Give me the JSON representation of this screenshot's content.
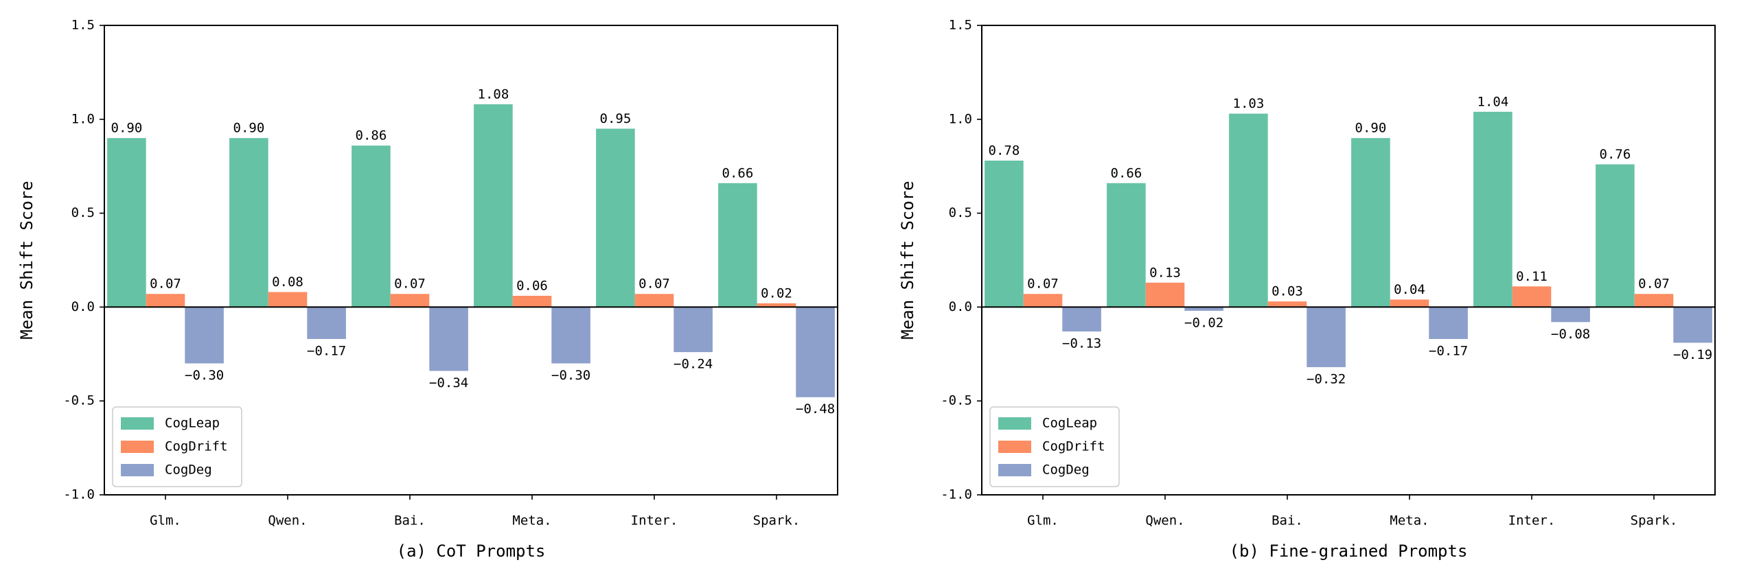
{
  "chart_data": [
    {
      "type": "bar",
      "xlabel": "(a) CoT Prompts",
      "ylabel": "Mean Shift Score",
      "categories": [
        "Glm.",
        "Qwen.",
        "Bai.",
        "Meta.",
        "Inter.",
        "Spark."
      ],
      "series": [
        {
          "name": "CogLeap",
          "color": "#66c2a5",
          "values": [
            0.9,
            0.9,
            0.86,
            1.08,
            0.95,
            0.66
          ],
          "value_labels": [
            "0.90",
            "0.90",
            "0.86",
            "1.08",
            "0.95",
            "0.66"
          ]
        },
        {
          "name": "CogDrift",
          "color": "#fc8d62",
          "values": [
            0.07,
            0.08,
            0.07,
            0.06,
            0.07,
            0.02
          ],
          "value_labels": [
            "0.07",
            "0.08",
            "0.07",
            "0.06",
            "0.07",
            "0.02"
          ]
        },
        {
          "name": "CogDeg",
          "color": "#8da0cb",
          "values": [
            -0.3,
            -0.17,
            -0.34,
            -0.3,
            -0.24,
            -0.48
          ],
          "value_labels": [
            "−0.30",
            "−0.17",
            "−0.34",
            "−0.30",
            "−0.24",
            "−0.48"
          ]
        }
      ],
      "ylim": [
        -1.0,
        1.5
      ],
      "yticks": [
        {
          "value": -1.0,
          "label": "-1.0"
        },
        -0.5,
        {
          "value": 0.0,
          "label": "0.0"
        },
        0.5,
        {
          "value": 1.0,
          "label": "1.0"
        },
        1.5
      ],
      "legend": "lower left",
      "grid": false
    },
    {
      "type": "bar",
      "xlabel": "(b) Fine-grained Prompts",
      "ylabel": "Mean Shift Score",
      "categories": [
        "Glm.",
        "Qwen.",
        "Bai.",
        "Meta.",
        "Inter.",
        "Spark."
      ],
      "series": [
        {
          "name": "CogLeap",
          "color": "#66c2a5",
          "values": [
            0.78,
            0.66,
            1.03,
            0.9,
            1.04,
            0.76
          ],
          "value_labels": [
            "0.78",
            "0.66",
            "1.03",
            "0.90",
            "1.04",
            "0.76"
          ]
        },
        {
          "name": "CogDrift",
          "color": "#fc8d62",
          "values": [
            0.07,
            0.13,
            0.03,
            0.04,
            0.11,
            0.07
          ],
          "value_labels": [
            "0.07",
            "0.13",
            "0.03",
            "0.04",
            "0.11",
            "0.07"
          ]
        },
        {
          "name": "CogDeg",
          "color": "#8da0cb",
          "values": [
            -0.13,
            -0.02,
            -0.32,
            -0.17,
            -0.08,
            -0.19
          ],
          "value_labels": [
            "−0.13",
            "−0.02",
            "−0.32",
            "−0.17",
            "−0.08",
            "−0.19"
          ]
        }
      ],
      "ylim": [
        -1.0,
        1.5
      ],
      "yticks": [
        {
          "value": -1.0,
          "label": "-1.0"
        },
        -0.5,
        {
          "value": 0.0,
          "label": "0.0"
        },
        0.5,
        {
          "value": 1.0,
          "label": "1.0"
        },
        1.5
      ],
      "legend": "lower left",
      "grid": false
    }
  ]
}
